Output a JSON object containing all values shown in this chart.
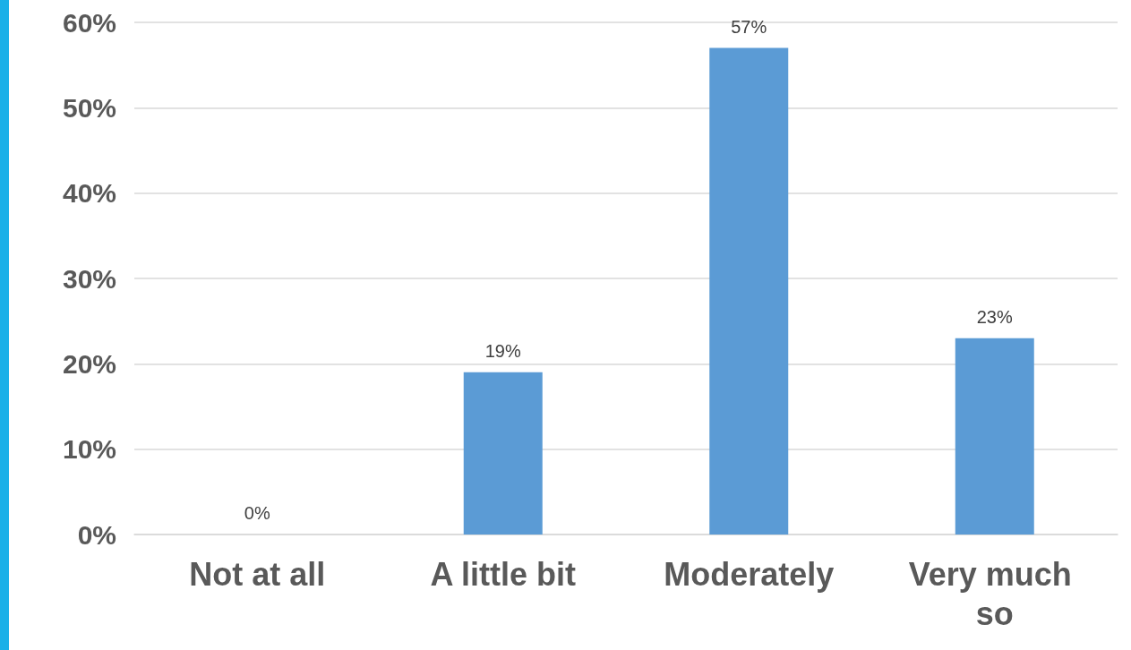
{
  "chart_data": {
    "type": "bar",
    "categories": [
      "Not at all",
      "A little bit",
      "Moderately",
      "Very much so"
    ],
    "values": [
      0,
      19,
      57,
      23
    ],
    "value_labels": [
      "0%",
      "19%",
      "57%",
      "23%"
    ],
    "color": "#5b9bd5",
    "ylim": [
      0,
      60
    ],
    "yticks": [
      {
        "value": 0,
        "label": "0%"
      },
      {
        "value": 10,
        "label": "10%"
      },
      {
        "value": 20,
        "label": "20%"
      },
      {
        "value": 30,
        "label": "30%"
      },
      {
        "value": 40,
        "label": "40%"
      },
      {
        "value": 50,
        "label": "50%"
      },
      {
        "value": 60,
        "label": "60%"
      }
    ],
    "grid": "y"
  }
}
